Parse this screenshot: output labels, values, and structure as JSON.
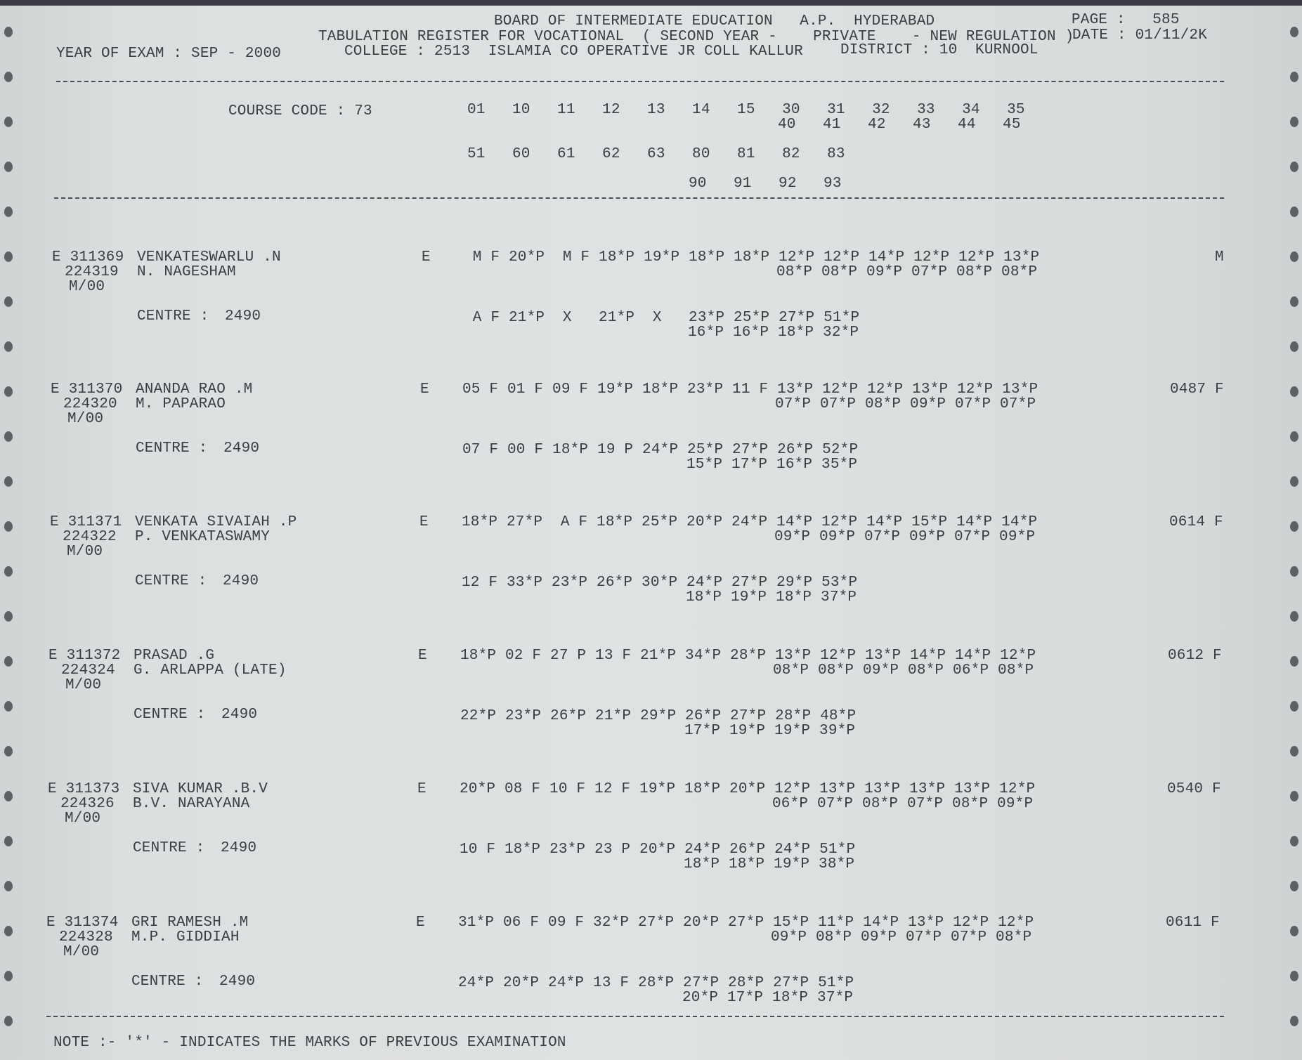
{
  "header": {
    "board": "BOARD OF INTERMEDIATE EDUCATION   A.P.  HYDERABAD",
    "page": "PAGE :   585",
    "register": "TABULATION REGISTER FOR VOCATIONAL  ( SECOND YEAR -    PRIVATE    - NEW REGULATION )",
    "date": "DATE : 01/11/2K",
    "year_of_exam": "YEAR OF EXAM : SEP - 2000",
    "college": "COLLEGE : 2513  ISLAMIA CO OPERATIVE JR COLL KALLUR",
    "district": "DISTRICT : 10  KURNOOL"
  },
  "course": {
    "label": "COURSE CODE : 73",
    "cols_row1": "01   10   11   12   13   14   15   30   31   32   33   34   35",
    "cols_row1b": "40   41   42   43   44   45",
    "cols_row2": "51   60   61   62   63   80   81   82   83",
    "cols_row2b": "90   91   92   93"
  },
  "records": [
    {
      "roll": "E 311369",
      "name": "VENKATESWARLU .N",
      "regno": "224319",
      "father": "N. NAGESHAM",
      "medium": "M/00",
      "type": "E",
      "centre_label": "CENTRE :",
      "centre": "2490",
      "marks1": " M F 20*P  M F 18*P 19*P 18*P 18*P 12*P 12*P 14*P 12*P 12*P 13*P",
      "marks1b": "08*P 08*P 09*P 07*P 08*P 08*P",
      "marks2": " A F 21*P  X   21*P  X   23*P 25*P 27*P 51*P",
      "marks2b": "16*P 16*P 18*P 32*P",
      "result": "M"
    },
    {
      "roll": "E 311370",
      "name": "ANANDA RAO .M",
      "regno": "224320",
      "father": "M. PAPARAO",
      "medium": "M/00",
      "type": "E",
      "centre_label": "CENTRE :",
      "centre": "2490",
      "marks1": "05 F 01 F 09 F 19*P 18*P 23*P 11 F 13*P 12*P 12*P 13*P 12*P 13*P",
      "marks1b": "07*P 07*P 08*P 09*P 07*P 07*P",
      "marks2": "07 F 00 F 18*P 19 P 24*P 25*P 27*P 26*P 52*P",
      "marks2b": "15*P 17*P 16*P 35*P",
      "result": "0487 F"
    },
    {
      "roll": "E 311371",
      "name": "VENKATA SIVAIAH .P",
      "regno": "224322",
      "father": "P. VENKATASWAMY",
      "medium": "M/00",
      "type": "E",
      "centre_label": "CENTRE :",
      "centre": "2490",
      "marks1": "18*P 27*P  A F 18*P 25*P 20*P 24*P 14*P 12*P 14*P 15*P 14*P 14*P",
      "marks1b": "09*P 09*P 07*P 09*P 07*P 09*P",
      "marks2": "12 F 33*P 23*P 26*P 30*P 24*P 27*P 29*P 53*P",
      "marks2b": "18*P 19*P 18*P 37*P",
      "result": "0614 F"
    },
    {
      "roll": "E 311372",
      "name": "PRASAD .G",
      "regno": "224324",
      "father": "G. ARLAPPA (LATE)",
      "medium": "M/00",
      "type": "E",
      "centre_label": "CENTRE :",
      "centre": "2490",
      "marks1": "18*P 02 F 27 P 13 F 21*P 34*P 28*P 13*P 12*P 13*P 14*P 14*P 12*P",
      "marks1b": "08*P 08*P 09*P 08*P 06*P 08*P",
      "marks2": "22*P 23*P 26*P 21*P 29*P 26*P 27*P 28*P 48*P",
      "marks2b": "17*P 19*P 19*P 39*P",
      "result": "0612 F"
    },
    {
      "roll": "E 311373",
      "name": "SIVA KUMAR .B.V",
      "regno": "224326",
      "father": "B.V. NARAYANA",
      "medium": "M/00",
      "type": "E",
      "centre_label": "CENTRE :",
      "centre": "2490",
      "marks1": "20*P 08 F 10 F 12 F 19*P 18*P 20*P 12*P 13*P 13*P 13*P 13*P 12*P",
      "marks1b": "06*P 07*P 08*P 07*P 08*P 09*P",
      "marks2": "10 F 18*P 23*P 23 P 20*P 24*P 26*P 24*P 51*P",
      "marks2b": "18*P 18*P 19*P 38*P",
      "result": "0540 F"
    },
    {
      "roll": "E 311374",
      "name": "GRI RAMESH .M",
      "regno": "224328",
      "father": "M.P. GIDDIAH",
      "medium": "M/00",
      "type": "E",
      "centre_label": "CENTRE :",
      "centre": "2490",
      "marks1": "31*P 06 F 09 F 32*P 27*P 20*P 27*P 15*P 11*P 14*P 13*P 12*P 12*P",
      "marks1b": "09*P 08*P 09*P 07*P 07*P 08*P",
      "marks2": "24*P 20*P 24*P 13 F 28*P 27*P 28*P 27*P 51*P",
      "marks2b": "20*P 17*P 18*P 37*P",
      "result": "0611 F"
    }
  ],
  "note": "NOTE :- '*' - INDICATES THE MARKS OF PREVIOUS EXAMINATION"
}
